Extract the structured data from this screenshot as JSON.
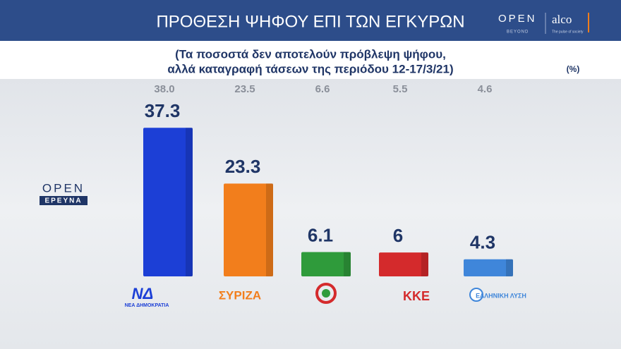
{
  "chart_data": {
    "type": "bar",
    "title": "ΠΡΟΘΕΣΗ ΨΗΦΟΥ ΕΠΙ ΤΩΝ ΕΓΚΥΡΩΝ",
    "subtitle": [
      "(Τα ποσοστά δεν αποτελούν πρόβλεψη ψήφου,",
      "αλλά καταγραφή τάσεων της περιόδου 12-17/3/21)"
    ],
    "unit_label": "(%)",
    "categories": [
      "ΝΕΑ ΔΗΜΟΚΡΑΤΙΑ",
      "ΣΥΡΙΖΑ",
      null,
      "ΚΚΕ",
      "ΕΛΛΗΝΙΚΗ ΛΥΣΗ"
    ],
    "values": [
      37.3,
      23.3,
      6.1,
      6,
      4.3
    ],
    "colors": [
      "#1c3fd6",
      "#f27e1c",
      "#2f9b3b",
      "#d42a2c",
      "#3f86da"
    ],
    "previous_values": [
      38.0,
      23.5,
      6.6,
      5.5,
      4.6
    ],
    "previous_value_labels": [
      "38.0",
      "23.5",
      "6.6",
      "5.5",
      "4.6"
    ]
  },
  "branding": {
    "open_top": "OPEN",
    "open_sub": "BEYOND",
    "alco": "alco",
    "alco_sub": "The pulse of society",
    "open_left": "OPEN",
    "open_left_sub": "ΕΡΕΥΝΑ",
    "nd_logo": "ΝΔ"
  }
}
